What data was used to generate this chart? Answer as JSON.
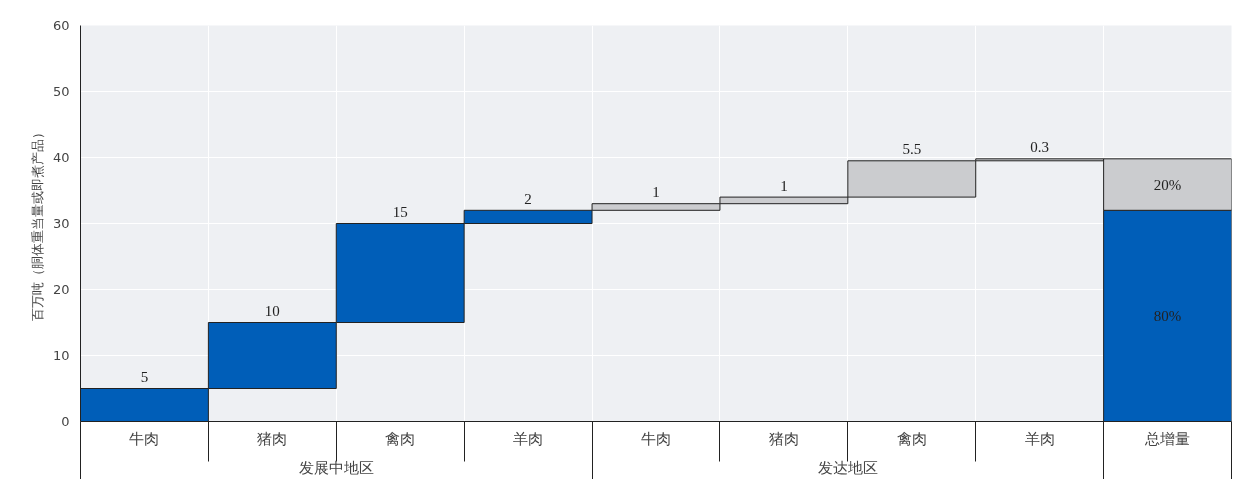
{
  "chart_data": {
    "type": "bar",
    "ylabel": "百万吨（胴体重当量或即煮产品）",
    "categories": [
      "牛肉",
      "猪肉",
      "禽肉",
      "羊肉",
      "牛肉",
      "猪肉",
      "禽肉",
      "羊肉",
      "总增量"
    ],
    "series": [
      {
        "color": "#005eb8",
        "values": [
          5,
          10,
          15,
          2,
          null,
          null,
          null,
          null,
          32
        ],
        "base": [
          0,
          5,
          15,
          30,
          null,
          null,
          null,
          null,
          0
        ],
        "value_labels": [
          "5",
          "10",
          "15",
          "2",
          null,
          null,
          null,
          null,
          null
        ]
      },
      {
        "color": "#cbcccf",
        "values": [
          null,
          null,
          null,
          null,
          1,
          1,
          5.5,
          0.3,
          7.8
        ],
        "base": [
          null,
          null,
          null,
          null,
          32,
          33,
          34,
          39.5,
          32
        ],
        "value_labels": [
          null,
          null,
          null,
          null,
          "1",
          "1",
          "5.5",
          "0.3",
          null
        ]
      }
    ],
    "annotations": [
      "发展中地区",
      "发达地区",
      "80%",
      "20%"
    ],
    "ylim": [
      0,
      60
    ],
    "yticks": [
      0,
      10,
      20,
      30,
      40,
      50,
      60
    ],
    "grid": true
  }
}
